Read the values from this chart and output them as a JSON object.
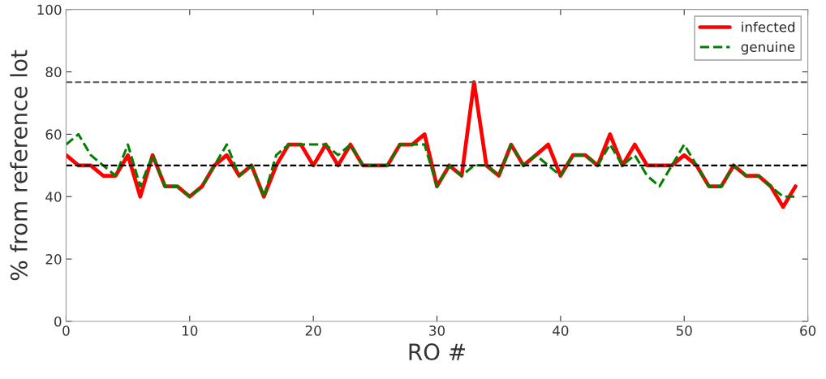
{
  "chart_data": {
    "type": "line",
    "xlabel": "RO #",
    "ylabel": "% from reference lot",
    "x": [
      0,
      1,
      2,
      3,
      4,
      5,
      6,
      7,
      8,
      9,
      10,
      11,
      12,
      13,
      14,
      15,
      16,
      17,
      18,
      19,
      20,
      21,
      22,
      23,
      24,
      25,
      26,
      27,
      28,
      29,
      30,
      31,
      32,
      33,
      34,
      35,
      36,
      37,
      38,
      39,
      40,
      41,
      42,
      43,
      44,
      45,
      46,
      47,
      48,
      49,
      50,
      51,
      52,
      53,
      54,
      55,
      56,
      57,
      58,
      59
    ],
    "series": [
      {
        "name": "infected",
        "color": "#ff0000",
        "line_style": "solid",
        "values": [
          53.3,
          50,
          50,
          46.7,
          46.7,
          53.3,
          40,
          53.3,
          43.3,
          43.3,
          40,
          43.3,
          50,
          53.3,
          46.7,
          50,
          40,
          50,
          56.7,
          56.7,
          50,
          56.7,
          50,
          56.7,
          50,
          50,
          50,
          56.7,
          56.7,
          60,
          43.3,
          50,
          46.7,
          76.7,
          50,
          46.7,
          56.7,
          50,
          53.3,
          56.7,
          46.7,
          53.3,
          53.3,
          50,
          60,
          50,
          56.7,
          50,
          50,
          50,
          53.3,
          50,
          43.3,
          43.3,
          50,
          46.7,
          46.7,
          43.3,
          36.7,
          43.3
        ]
      },
      {
        "name": "genuine",
        "color": "#008000",
        "line_style": "dashed",
        "values": [
          56.7,
          60,
          53.3,
          50,
          46.7,
          56.7,
          43.3,
          53.3,
          43.3,
          43.3,
          40,
          43.3,
          50,
          56.7,
          46.7,
          50,
          40,
          53.3,
          56.7,
          56.7,
          56.7,
          56.7,
          53.3,
          56.7,
          50,
          50,
          50,
          56.7,
          56.7,
          56.7,
          43.3,
          50,
          46.7,
          50,
          50,
          46.7,
          56.7,
          50,
          53.3,
          50,
          46.7,
          53.3,
          53.3,
          50,
          56.7,
          50,
          53.3,
          46.7,
          43.3,
          50,
          56.7,
          50,
          43.3,
          43.3,
          50,
          46.7,
          46.7,
          43.3,
          40,
          40
        ]
      }
    ],
    "xlim": [
      0,
      60
    ],
    "xticks": [
      0,
      10,
      20,
      30,
      40,
      50,
      60
    ],
    "ylim": [
      0,
      100
    ],
    "yticks": [
      0,
      20,
      40,
      60,
      80,
      100
    ],
    "ref_lines": [
      {
        "axis": "y",
        "value": 76.7,
        "color": "#555555",
        "line_style": "dashed"
      },
      {
        "axis": "y",
        "value": 50,
        "color": "#000000",
        "line_style": "dashed"
      }
    ],
    "grid": false,
    "legend": "top right"
  }
}
